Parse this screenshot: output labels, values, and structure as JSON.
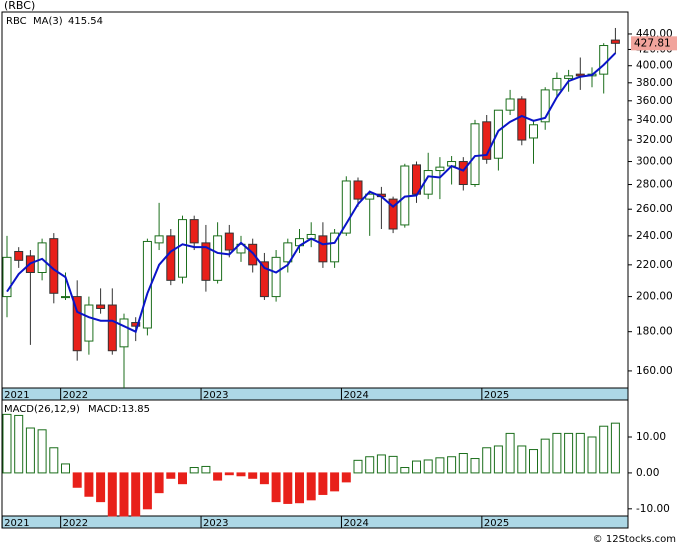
{
  "chart_data": [
    {
      "type": "candlestick",
      "title": "(RBC)",
      "symbol": "RBC",
      "log_scale": true,
      "grid": false,
      "up_color": "#1b6e1b",
      "down_color": "#e8201a",
      "band_color": "#add8e6",
      "price_box_color": "#f1a49c",
      "categories": [
        "2021",
        null,
        null,
        null,
        null,
        "2022",
        null,
        null,
        null,
        null,
        null,
        null,
        null,
        null,
        null,
        null,
        null,
        "2023",
        null,
        null,
        null,
        null,
        null,
        null,
        null,
        null,
        null,
        null,
        null,
        "2024",
        null,
        null,
        null,
        null,
        null,
        null,
        null,
        null,
        null,
        null,
        null,
        "2025",
        null,
        null,
        null,
        null,
        null,
        null,
        null,
        null,
        null,
        null,
        null
      ],
      "open": [
        200,
        229,
        226,
        215,
        238,
        200,
        200,
        175,
        195,
        195,
        172,
        185,
        182,
        235,
        240,
        212,
        252,
        235,
        210,
        242,
        228,
        234,
        222,
        200,
        222,
        233,
        238,
        240,
        222,
        242,
        283,
        268,
        272,
        268,
        248,
        297,
        272,
        292,
        296,
        300,
        280,
        338,
        303,
        350,
        362,
        322,
        338,
        372,
        385,
        390,
        388,
        390,
        432
      ],
      "high": [
        240,
        232,
        230,
        238,
        242,
        215,
        210,
        200,
        205,
        205,
        190,
        188,
        238,
        265,
        245,
        255,
        255,
        248,
        250,
        248,
        240,
        238,
        228,
        230,
        238,
        245,
        250,
        250,
        245,
        287,
        286,
        275,
        278,
        270,
        298,
        300,
        308,
        304,
        305,
        304,
        340,
        345,
        350,
        372,
        365,
        340,
        375,
        392,
        395,
        410,
        398,
        428,
        448
      ],
      "low": [
        188,
        218,
        173,
        210,
        196,
        198,
        165,
        168,
        190,
        168,
        152,
        175,
        178,
        230,
        207,
        208,
        230,
        203,
        208,
        225,
        222,
        215,
        198,
        197,
        215,
        228,
        232,
        218,
        218,
        240,
        262,
        240,
        245,
        242,
        246,
        265,
        268,
        268,
        280,
        275,
        278,
        298,
        292,
        345,
        315,
        298,
        330,
        365,
        370,
        372,
        375,
        368,
        415
      ],
      "close": [
        225,
        223,
        215,
        235,
        202,
        200,
        170,
        195,
        193,
        170,
        187,
        183,
        236,
        240,
        210,
        252,
        235,
        210,
        240,
        230,
        234,
        220,
        200,
        225,
        235,
        238,
        241,
        222,
        242,
        283,
        268,
        272,
        270,
        245,
        296,
        272,
        292,
        295,
        300,
        280,
        336,
        302,
        350,
        362,
        320,
        335,
        372,
        385,
        388,
        388,
        390,
        425,
        427.81
      ],
      "series": [
        {
          "name": "MA(3)",
          "color": "#0a14c8",
          "values": [
            203,
            214,
            221,
            224,
            217,
            212,
            191,
            188,
            186,
            186,
            183,
            180,
            202,
            220,
            229,
            234,
            232,
            232,
            228,
            227,
            235,
            228,
            218,
            215,
            220,
            233,
            238,
            234,
            235,
            249,
            264,
            274,
            270,
            262,
            270,
            271,
            287,
            286,
            296,
            292,
            305,
            306,
            329,
            338,
            344,
            339,
            342,
            364,
            382,
            387,
            389,
            401,
            415.54
          ]
        }
      ],
      "ylim": [
        152,
        470
      ],
      "yticks": [
        {
          "value": 440,
          "label": "440.00"
        },
        {
          "value": 420,
          "label": "420.00"
        },
        {
          "value": 400,
          "label": "400.00"
        },
        {
          "value": 380,
          "label": "380.00"
        },
        {
          "value": 360,
          "label": "360.00"
        },
        {
          "value": 340,
          "label": "340.00"
        },
        {
          "value": 320,
          "label": "320.00"
        },
        {
          "value": 300,
          "label": "300.00"
        },
        {
          "value": 280,
          "label": "280.00"
        },
        {
          "value": 260,
          "label": "260.00"
        },
        {
          "value": 240,
          "label": "240.00"
        },
        {
          "value": 220,
          "label": "220.00"
        },
        {
          "value": 200,
          "label": "200.00"
        },
        {
          "value": 180,
          "label": "180.00"
        },
        {
          "value": 160,
          "label": "160.00"
        }
      ],
      "credit": "© 12Stocks.com"
    },
    {
      "type": "bar",
      "title": "MACD(26,12,9)",
      "readout_prefix": "MACD:",
      "up_color": "#1b6e1b",
      "down_color": "#e8201a",
      "readout_color": "#0a14c8",
      "values": [
        16.3,
        16,
        12.5,
        12,
        7,
        2.5,
        -4,
        -6.5,
        -8,
        -12,
        -12,
        -12,
        -10,
        -5.5,
        -1.5,
        -3,
        1.5,
        1.8,
        -2,
        -0.5,
        -0.8,
        -1.5,
        -3,
        -8,
        -8.5,
        -8.3,
        -7.5,
        -6,
        -5,
        -2.5,
        3.5,
        4.5,
        5,
        4.6,
        1.5,
        3.3,
        3.6,
        4.2,
        4.5,
        5.4,
        4,
        7,
        7.5,
        11,
        7.5,
        6.5,
        9.4,
        11,
        11,
        11,
        10,
        13,
        13.85
      ],
      "ylim": [
        -12,
        20.3
      ],
      "yticks": [
        {
          "value": 10,
          "label": "10.00"
        },
        {
          "value": 0,
          "label": "0.00"
        },
        {
          "value": -10,
          "label": "-10.00"
        }
      ]
    }
  ]
}
